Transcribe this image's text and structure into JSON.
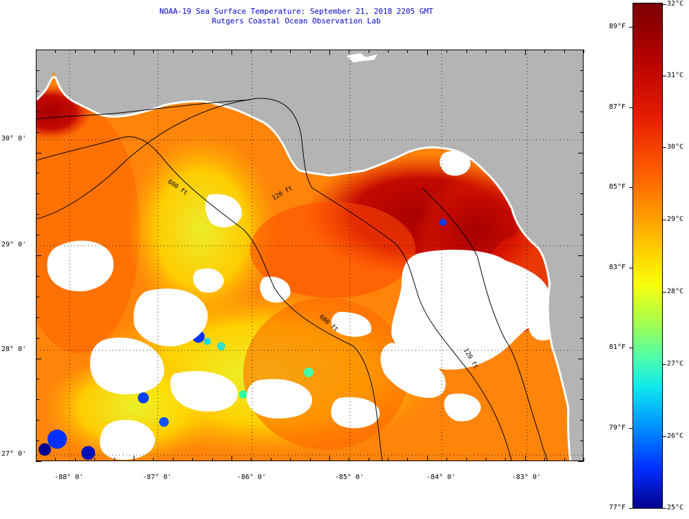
{
  "title": {
    "line1": "NOAA-19 Sea Surface Temperature:  September 21, 2018 2205 GMT",
    "line2": "Rutgers Coastal Ocean Observation Lab"
  },
  "map": {
    "latitude_labels": [
      "30° 0'",
      "29° 0'",
      "28° 0'",
      "27° 0'"
    ],
    "longitude_labels": [
      "-88° 0'",
      "-87° 0'",
      "-86° 0'",
      "-85° 0'",
      "-84° 0'",
      "-83° 0'"
    ],
    "isobath_labels": [
      "600 ft",
      "120 ft",
      "600 ft",
      "120 ft"
    ],
    "colors": {
      "land": "#b4b4b4",
      "cloud_mask": "#ffffff",
      "contour": "#000000"
    }
  },
  "colorbar": {
    "celsius_labels": [
      "32°C",
      "31°C",
      "30°C",
      "29°C",
      "28°C",
      "27°C",
      "26°C",
      "25°C"
    ],
    "fahrenheit_labels": [
      "89°F",
      "87°F",
      "85°F",
      "83°F",
      "81°F",
      "79°F",
      "77°F"
    ],
    "range_c": [
      25,
      32
    ],
    "range_f": [
      77,
      89.6
    ]
  }
}
